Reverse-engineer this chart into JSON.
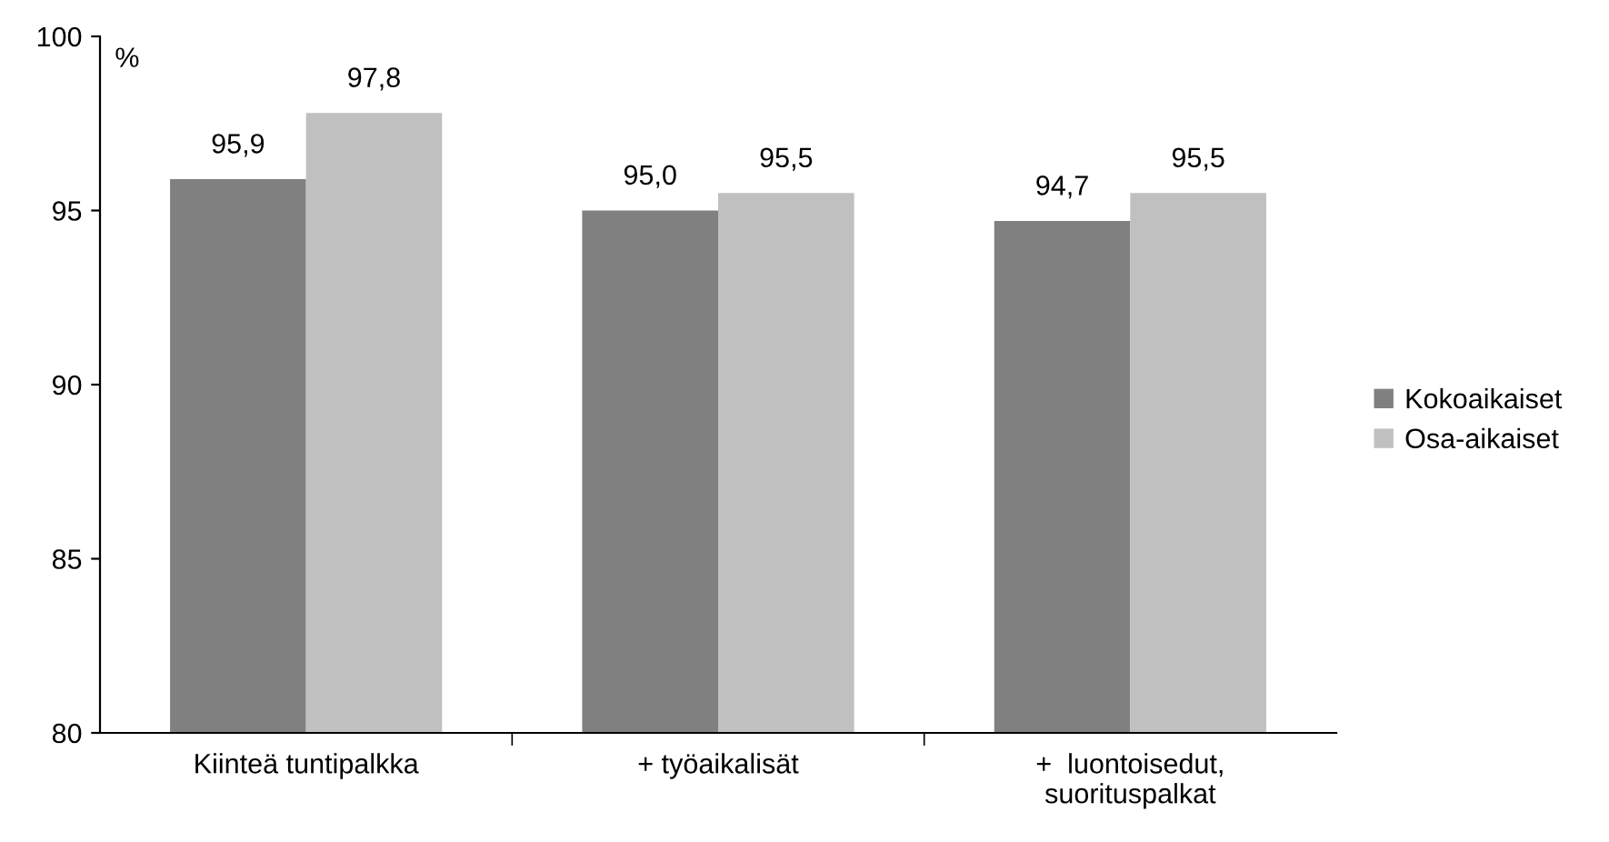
{
  "chart_data": {
    "type": "bar",
    "ylabel": "%",
    "categories": [
      "Kiinteä tuntipalkka",
      "+ työaikalisät",
      "+  luontoisedut,\nsuorituspalkat"
    ],
    "series": [
      {
        "name": "Kokoaikaiset",
        "color": "#808080",
        "values": [
          95.9,
          95.0,
          94.7
        ],
        "value_labels": [
          "95,9",
          "95,0",
          "94,7"
        ]
      },
      {
        "name": "Osa-aikaiset",
        "color": "#c0c0c0",
        "values": [
          97.8,
          95.5,
          95.5
        ],
        "value_labels": [
          "97,8",
          "95,5",
          "95,5"
        ]
      }
    ],
    "ylim": [
      80,
      100
    ],
    "yticks": [
      80,
      85,
      90,
      95,
      100
    ],
    "grid": false,
    "legend": "right"
  }
}
